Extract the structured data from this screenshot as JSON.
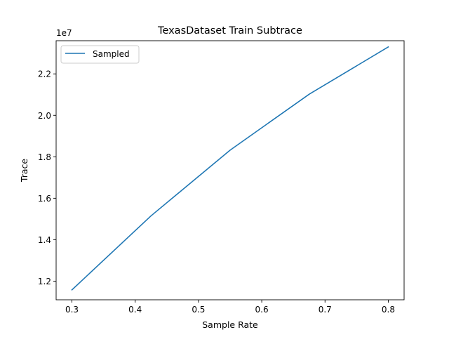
{
  "chart_data": {
    "type": "line",
    "title": "TexasDataset Train Subtrace",
    "xlabel": "Sample Rate",
    "ylabel": "Trace",
    "y_multiplier_label": "1e7",
    "xlim": [
      0.275,
      0.825
    ],
    "ylim": [
      1.11,
      2.36
    ],
    "x_ticks": [
      0.3,
      0.4,
      0.5,
      0.6,
      0.7,
      0.8
    ],
    "x_tick_labels": [
      "0.3",
      "0.4",
      "0.5",
      "0.6",
      "0.7",
      "0.8"
    ],
    "y_ticks": [
      1.2,
      1.4,
      1.6,
      1.8,
      2.0,
      2.2
    ],
    "y_tick_labels": [
      "1.2",
      "1.4",
      "1.6",
      "1.8",
      "2.0",
      "2.2"
    ],
    "grid": false,
    "legend_position": "top-left",
    "series": [
      {
        "name": "Sampled",
        "color": "#1f77b4",
        "x": [
          0.3,
          0.425,
          0.55,
          0.675,
          0.8
        ],
        "y": [
          1.158,
          1.515,
          1.832,
          2.102,
          2.33
        ]
      }
    ]
  }
}
